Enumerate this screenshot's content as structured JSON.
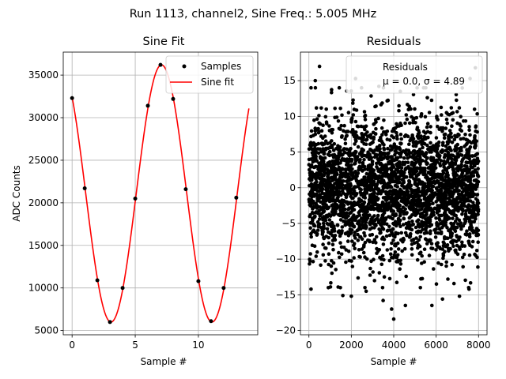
{
  "figure": {
    "suptitle": "Run 1113, channel2, Sine Freq.: 5.005 MHz"
  },
  "chart_data": [
    {
      "type": "scatter",
      "title": "Sine Fit",
      "xlabel": "Sample #",
      "ylabel": "ADC Counts",
      "xlim": [
        -0.7,
        14.7
      ],
      "ylim": [
        4500,
        37700
      ],
      "xticks": [
        0,
        5,
        10
      ],
      "yticks": [
        5000,
        10000,
        15000,
        20000,
        25000,
        30000,
        35000
      ],
      "xtick_labels": [
        "0",
        "5",
        "10"
      ],
      "ytick_labels": [
        "5000",
        "10000",
        "15000",
        "20000",
        "25000",
        "30000",
        "35000"
      ],
      "grid": true,
      "legend_position": "top-right",
      "series": [
        {
          "name": "Samples",
          "kind": "scatter",
          "color": "#000000",
          "x": [
            0,
            1,
            2,
            3,
            4,
            5,
            6,
            7,
            8,
            9,
            10,
            11,
            12,
            13
          ],
          "y": [
            32300,
            21700,
            10900,
            6000,
            10000,
            20500,
            31400,
            36200,
            32200,
            21600,
            10800,
            6100,
            10000,
            20600
          ]
        },
        {
          "name": "Sine fit",
          "kind": "line",
          "color": "#ff0000",
          "model": {
            "amplitude": 15100,
            "offset": 21100,
            "period": 8.0,
            "peak_at": 7.08,
            "x_start": 0,
            "x_end": 14
          }
        }
      ]
    },
    {
      "type": "scatter",
      "title": "Residuals",
      "xlabel": "Sample #",
      "ylabel": "",
      "xlim": [
        -400,
        8400
      ],
      "ylim": [
        -20.6,
        19.0
      ],
      "xticks": [
        0,
        2000,
        4000,
        6000,
        8000
      ],
      "yticks": [
        -20,
        -15,
        -10,
        -5,
        0,
        5,
        10,
        15
      ],
      "xtick_labels": [
        "0",
        "2000",
        "4000",
        "6000",
        "8000"
      ],
      "ytick_labels": [
        "−20",
        "−15",
        "−10",
        "−5",
        "0",
        "5",
        "10",
        "15"
      ],
      "grid": true,
      "legend_position": "top-right",
      "legend_entries": [
        "Residuals",
        "μ = 0.0, σ = 4.89"
      ],
      "series": [
        {
          "name": "Residuals",
          "kind": "scatter",
          "color": "#000000",
          "summary": {
            "n": 8000,
            "mean": 0.0,
            "sigma": 4.89,
            "x_start": 0,
            "x_end": 7999
          },
          "outliers": [
            {
              "x": 500,
              "y": 17.0
            },
            {
              "x": 7850,
              "y": 16.8
            },
            {
              "x": 2200,
              "y": 15.3
            },
            {
              "x": 300,
              "y": 15.0
            },
            {
              "x": 7600,
              "y": 15.3
            },
            {
              "x": 3300,
              "y": 14.2
            },
            {
              "x": 4000,
              "y": -18.4
            },
            {
              "x": 3900,
              "y": -17.0
            },
            {
              "x": 4550,
              "y": -16.5
            },
            {
              "x": 5800,
              "y": -16.5
            },
            {
              "x": 3500,
              "y": -15.8
            },
            {
              "x": 1600,
              "y": -15.1
            },
            {
              "x": 6300,
              "y": -15.6
            },
            {
              "x": 2000,
              "y": -15.2
            },
            {
              "x": 7550,
              "y": -14.2
            },
            {
              "x": 100,
              "y": -14.2
            },
            {
              "x": 7100,
              "y": -15.2
            },
            {
              "x": 2700,
              "y": -14.5
            }
          ]
        }
      ]
    }
  ]
}
